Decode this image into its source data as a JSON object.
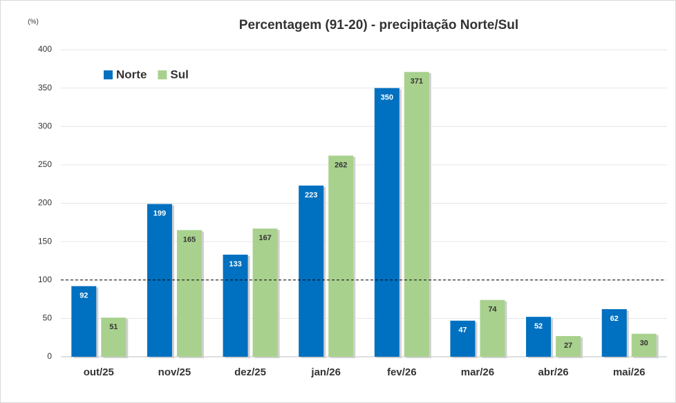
{
  "chart_data": {
    "type": "bar",
    "title": "Percentagem (91-20) - precipitação Norte/Sul",
    "y_label": "(%)",
    "categories": [
      "out/25",
      "nov/25",
      "dez/25",
      "jan/26",
      "fev/26",
      "mar/26",
      "abr/26",
      "mai/26"
    ],
    "series": [
      {
        "name": "Norte",
        "color": "#0070c0",
        "values": [
          92,
          199,
          133,
          223,
          350,
          47,
          52,
          62
        ]
      },
      {
        "name": "Sul",
        "color": "#a9d18e",
        "values": [
          51,
          165,
          167,
          262,
          371,
          74,
          27,
          30
        ]
      }
    ],
    "ylim": [
      0,
      400
    ],
    "yticks": [
      0,
      50,
      100,
      150,
      200,
      250,
      300,
      350,
      400
    ],
    "grid": true,
    "reference_line": 100,
    "legend": "top-left"
  }
}
